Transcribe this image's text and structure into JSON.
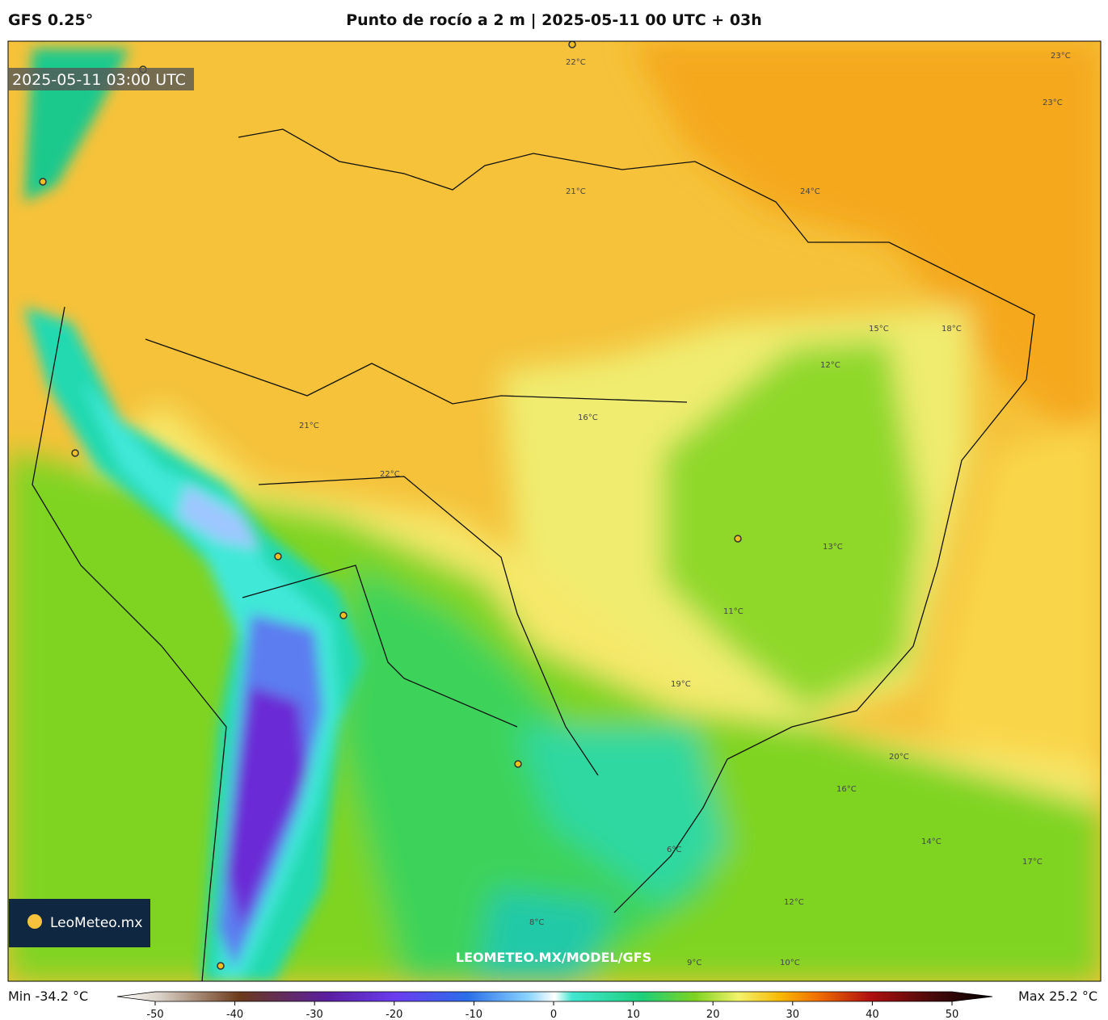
{
  "header": {
    "model": "GFS 0.25°",
    "title": "Punto de rocío a 2 m | 2025-05-11 00 UTC + 03h"
  },
  "map": {
    "valid_time": "2025-05-11 03:00 UTC",
    "logo": "LeoMeteo.mx",
    "watermark": "LEOMETEO.MX/MODEL/GFS",
    "contour_labels": [
      "23°C",
      "22°C",
      "21°C",
      "24°C",
      "23°C",
      "22°C",
      "21°C",
      "16°C",
      "15°C",
      "12°C",
      "13°C",
      "11°C",
      "19°C",
      "20°C",
      "14°C",
      "16°C",
      "12°C",
      "10°C",
      "9°C",
      "8°C",
      "6°C",
      "17°C",
      "18°C"
    ]
  },
  "footer": {
    "min": "Min -34.2 °C",
    "max": "Max 25.2 °C"
  },
  "colorbar": {
    "xlim": [
      -50,
      50
    ],
    "xticks": [
      -50,
      -40,
      -30,
      -20,
      -10,
      0,
      10,
      20,
      30,
      40,
      50
    ]
  }
}
